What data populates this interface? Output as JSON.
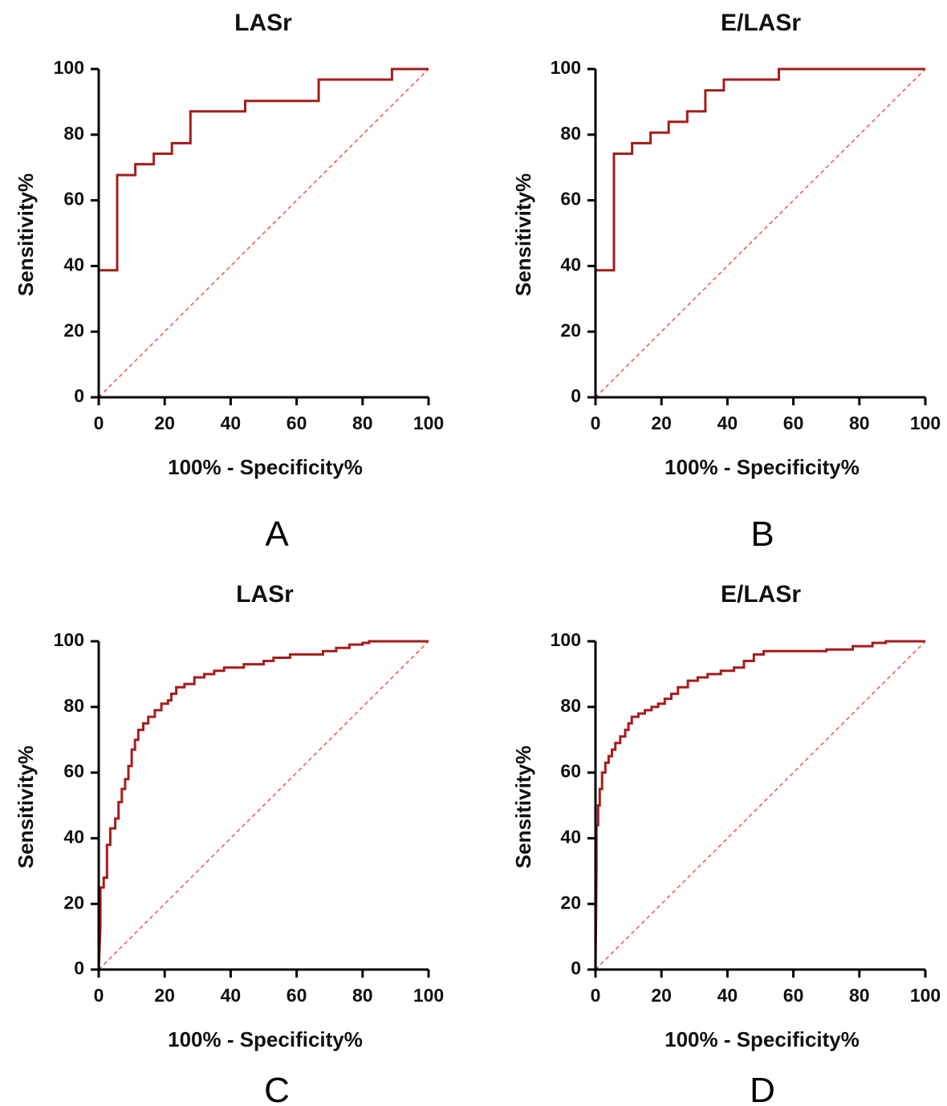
{
  "colors": {
    "roc_line": "#a51d1d",
    "reference_line": "#f05a5a",
    "axis": "#000000"
  },
  "chart_data": [
    {
      "panel": "A",
      "type": "line",
      "title": "LASr",
      "xlabel": "100% - Specificity%",
      "ylabel": "Sensitivity%",
      "xlim": [
        0,
        100
      ],
      "ylim": [
        0,
        100
      ],
      "xticks": [
        "0",
        "20",
        "40",
        "60",
        "80",
        "100"
      ],
      "yticks": [
        "0",
        "20",
        "40",
        "60",
        "80",
        "100"
      ],
      "curve_style": "step",
      "reference_line": [
        [
          0,
          0
        ],
        [
          100,
          100
        ]
      ],
      "x": [
        0,
        0,
        5.6,
        5.6,
        11.1,
        11.1,
        16.7,
        16.7,
        22.2,
        22.2,
        27.8,
        27.8,
        44.4,
        44.4,
        66.7,
        66.7,
        88.9,
        88.9,
        100
      ],
      "y": [
        0,
        38.7,
        38.7,
        67.7,
        67.7,
        71.0,
        71.0,
        74.2,
        74.2,
        77.4,
        77.4,
        87.1,
        87.1,
        90.3,
        90.3,
        96.8,
        96.8,
        100,
        100
      ]
    },
    {
      "panel": "B",
      "type": "line",
      "title": "E/LASr",
      "xlabel": "100% - Specificity%",
      "ylabel": "Sensitivity%",
      "xlim": [
        0,
        100
      ],
      "ylim": [
        0,
        100
      ],
      "xticks": [
        "0",
        "20",
        "40",
        "60",
        "80",
        "100"
      ],
      "yticks": [
        "0",
        "20",
        "40",
        "60",
        "80",
        "100"
      ],
      "curve_style": "step",
      "reference_line": [
        [
          0,
          0
        ],
        [
          100,
          100
        ]
      ],
      "x": [
        0,
        0,
        5.6,
        5.6,
        11.1,
        11.1,
        16.7,
        16.7,
        22.2,
        22.2,
        27.8,
        27.8,
        33.3,
        33.3,
        38.9,
        38.9,
        55.6,
        55.6,
        100
      ],
      "y": [
        0,
        38.7,
        38.7,
        74.2,
        74.2,
        77.4,
        77.4,
        80.6,
        80.6,
        83.9,
        83.9,
        87.1,
        87.1,
        93.5,
        93.5,
        96.8,
        96.8,
        100,
        100
      ]
    },
    {
      "panel": "C",
      "type": "line",
      "title": "LASr",
      "xlabel": "100% - Specificity%",
      "ylabel": "Sensitivity%",
      "xlim": [
        0,
        100
      ],
      "ylim": [
        0,
        100
      ],
      "xticks": [
        "0",
        "20",
        "40",
        "60",
        "80",
        "100"
      ],
      "yticks": [
        "0",
        "20",
        "40",
        "60",
        "80",
        "100"
      ],
      "curve_style": "fine-step",
      "reference_line": [
        [
          0,
          0
        ],
        [
          100,
          100
        ]
      ],
      "x": [
        0,
        0.5,
        0.5,
        1.5,
        1.5,
        2.5,
        2.5,
        3.5,
        3.5,
        5,
        5,
        6,
        6,
        7,
        7,
        8,
        8,
        9,
        9,
        10,
        10,
        11,
        11,
        12,
        12,
        13.5,
        13.5,
        15,
        15,
        17,
        17,
        19,
        19,
        21,
        21,
        22,
        22,
        23.5,
        23.5,
        26,
        26,
        29,
        29,
        32,
        32,
        35,
        35,
        38,
        38,
        44,
        44,
        50,
        50,
        53,
        53,
        58,
        58,
        64,
        64,
        68,
        68,
        72,
        72,
        76,
        76,
        80,
        80,
        82,
        82,
        100
      ],
      "y": [
        0,
        13,
        25,
        25,
        28,
        28,
        38,
        38,
        43,
        43,
        46,
        46,
        51,
        51,
        55,
        55,
        58,
        58,
        62,
        62,
        67,
        67,
        70,
        70,
        73,
        73,
        75,
        75,
        77,
        77,
        79,
        79,
        81,
        81,
        82,
        82,
        84,
        84,
        86,
        86,
        87,
        87,
        89,
        89,
        90,
        90,
        91,
        91,
        92,
        92,
        93,
        93,
        94,
        94,
        95,
        95,
        96,
        96,
        96,
        96,
        97,
        97,
        98,
        98,
        99,
        99,
        99.5,
        99.5,
        100,
        100
      ]
    },
    {
      "panel": "D",
      "type": "line",
      "title": "E/LASr",
      "xlabel": "100% - Specificity%",
      "ylabel": "Sensitivity%",
      "xlim": [
        0,
        100
      ],
      "ylim": [
        0,
        100
      ],
      "xticks": [
        "0",
        "20",
        "40",
        "60",
        "80",
        "100"
      ],
      "yticks": [
        "0",
        "20",
        "40",
        "60",
        "80",
        "100"
      ],
      "curve_style": "fine-step",
      "reference_line": [
        [
          0,
          0
        ],
        [
          100,
          100
        ]
      ],
      "x": [
        0,
        0.3,
        0.3,
        0.8,
        0.8,
        1.3,
        1.3,
        2,
        2,
        3,
        3,
        4,
        4,
        5,
        5,
        6,
        6,
        7.5,
        7.5,
        9,
        9,
        10,
        10,
        11,
        11,
        13,
        13,
        15,
        15,
        17,
        17,
        19,
        19,
        21,
        21,
        23,
        23,
        25,
        25,
        28,
        28,
        31,
        31,
        34,
        34,
        38,
        38,
        42,
        42,
        45,
        45,
        48,
        48,
        51,
        51,
        60,
        60,
        70,
        70,
        78,
        78,
        84,
        84,
        88,
        88,
        100
      ],
      "y": [
        0,
        30,
        44,
        44,
        50,
        50,
        55,
        55,
        60,
        60,
        63,
        63,
        65,
        65,
        67,
        67,
        69,
        69,
        71,
        71,
        73,
        73,
        75,
        75,
        77,
        77,
        78,
        78,
        79,
        79,
        80,
        80,
        81,
        81,
        82.5,
        82.5,
        84,
        84,
        86,
        86,
        88,
        88,
        89,
        89,
        90,
        90,
        91,
        91,
        92,
        92,
        94,
        94,
        96,
        96,
        97,
        97,
        97,
        97,
        97.5,
        97.5,
        98.5,
        98.5,
        99.5,
        99.5,
        100,
        100
      ]
    }
  ]
}
